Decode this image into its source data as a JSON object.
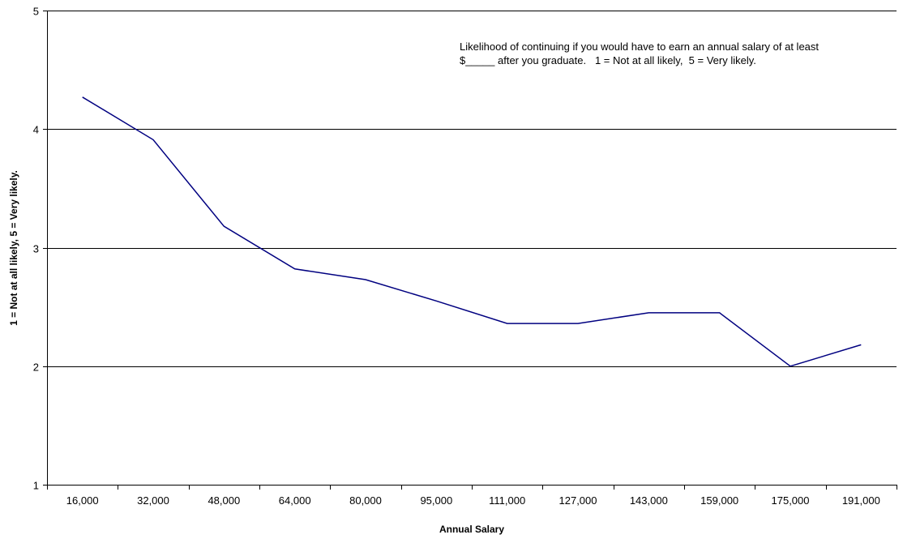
{
  "chart_data": {
    "type": "line",
    "title": "",
    "xlabel": "Annual Salary",
    "ylabel": "1 = Not at all likely, 5 = Very likely.",
    "annotation": "Likelihood of continuing if you would have to earn an annual salary of at least $_____ after you graduate.   1 = Not at all likely,  5 = Very likely.",
    "categories": [
      "16,000",
      "32,000",
      "48,000",
      "64,000",
      "80,000",
      "95,000",
      "111,000",
      "127,000",
      "143,000",
      "159,000",
      "175,000",
      "191,000"
    ],
    "series": [
      {
        "values": [
          4.27,
          3.91,
          3.18,
          2.82,
          2.73,
          2.55,
          2.36,
          2.36,
          2.45,
          2.45,
          2.0,
          2.18
        ]
      }
    ],
    "ylim": [
      1,
      5
    ],
    "yticks": [
      "1",
      "2",
      "3",
      "4",
      "5"
    ],
    "grid": true,
    "colors": {
      "line": "#000080",
      "grid": "#000000",
      "axis": "#000000"
    }
  }
}
